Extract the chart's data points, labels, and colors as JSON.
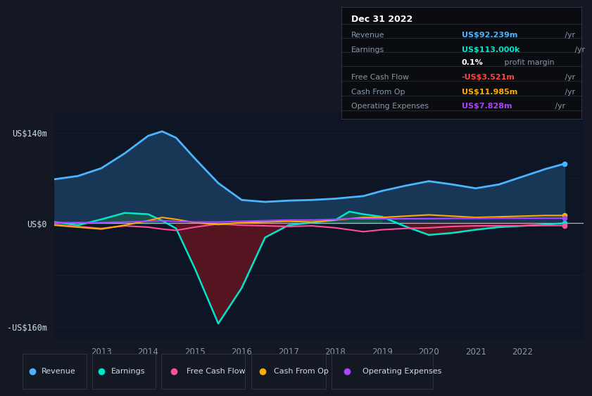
{
  "background_color": "#131822",
  "plot_bg_color": "#131822",
  "years": [
    2012.0,
    2012.5,
    2013.0,
    2013.5,
    2014.0,
    2014.3,
    2014.6,
    2015.0,
    2015.5,
    2016.0,
    2016.5,
    2017.0,
    2017.5,
    2018.0,
    2018.3,
    2018.6,
    2019.0,
    2019.5,
    2020.0,
    2020.5,
    2021.0,
    2021.5,
    2022.0,
    2022.5,
    2022.9
  ],
  "revenue": [
    68,
    73,
    85,
    108,
    135,
    142,
    132,
    100,
    62,
    36,
    33,
    35,
    36,
    38,
    40,
    42,
    50,
    58,
    65,
    60,
    54,
    60,
    72,
    84,
    92
  ],
  "earnings": [
    2,
    -3,
    6,
    16,
    14,
    4,
    -8,
    -70,
    -155,
    -100,
    -22,
    -3,
    1,
    5,
    18,
    14,
    10,
    -5,
    -18,
    -15,
    -10,
    -6,
    -4,
    -2,
    0.1
  ],
  "free_cash_flow": [
    -2,
    -5,
    -8,
    -4,
    -6,
    -9,
    -11,
    -6,
    -1,
    -3,
    -4,
    -5,
    -4,
    -7,
    -10,
    -13,
    -10,
    -8,
    -7,
    -5,
    -4,
    -4,
    -4,
    -3.5,
    -3.5
  ],
  "cash_from_op": [
    -3,
    -6,
    -9,
    -3,
    4,
    9,
    6,
    1,
    -2,
    1,
    2,
    3,
    2,
    5,
    7,
    9,
    9,
    11,
    13,
    11,
    9,
    10,
    11,
    12,
    12
  ],
  "operating_expenses": [
    1,
    1,
    1,
    2,
    3,
    4,
    3,
    2,
    2,
    3,
    4,
    5,
    5,
    6,
    7,
    7,
    7,
    7,
    7,
    7.5,
    7.5,
    7.8,
    7.8,
    7.8,
    7.8
  ],
  "revenue_color": "#4ab5ff",
  "earnings_color": "#00e5cc",
  "free_cash_flow_color": "#ff4d9d",
  "cash_from_op_color": "#ffaa00",
  "operating_expenses_color": "#aa44ff",
  "revenue_fill_color": "#1a3a5c",
  "earnings_fill_pos_color": "#1a5c4a",
  "earnings_fill_neg_color": "#5c1520",
  "zero_line_color": "#cccccc",
  "grid_color": "#1e2a3a",
  "text_color": "#8899aa",
  "label_color": "#ccddee",
  "ytick_labels": [
    "US$140m",
    "US$0",
    "-US$160m"
  ],
  "ytick_positions": [
    140,
    0,
    -160
  ],
  "xtick_years": [
    2013,
    2014,
    2015,
    2016,
    2017,
    2018,
    2019,
    2020,
    2021,
    2022
  ],
  "info_box": {
    "title": "Dec 31 2022",
    "rows": [
      {
        "label": "Revenue",
        "value": "US$92.239m",
        "unit": " /yr",
        "value_color": "#4ab5ff",
        "bold_pct": false
      },
      {
        "label": "Earnings",
        "value": "US$113.000k",
        "unit": " /yr",
        "value_color": "#00e5cc",
        "bold_pct": false
      },
      {
        "label": "",
        "value": "0.1%",
        "unit": " profit margin",
        "value_color": "#ffffff",
        "bold_pct": true
      },
      {
        "label": "Free Cash Flow",
        "value": "-US$3.521m",
        "unit": " /yr",
        "value_color": "#ff4444",
        "bold_pct": false
      },
      {
        "label": "Cash From Op",
        "value": "US$11.985m",
        "unit": " /yr",
        "value_color": "#ffaa00",
        "bold_pct": false
      },
      {
        "label": "Operating Expenses",
        "value": "US$7.828m",
        "unit": " /yr",
        "value_color": "#aa44ff",
        "bold_pct": false
      }
    ]
  },
  "legend": [
    {
      "label": "Revenue",
      "color": "#4ab5ff"
    },
    {
      "label": "Earnings",
      "color": "#00e5cc"
    },
    {
      "label": "Free Cash Flow",
      "color": "#ff4d9d"
    },
    {
      "label": "Cash From Op",
      "color": "#ffaa00"
    },
    {
      "label": "Operating Expenses",
      "color": "#aa44ff"
    }
  ]
}
